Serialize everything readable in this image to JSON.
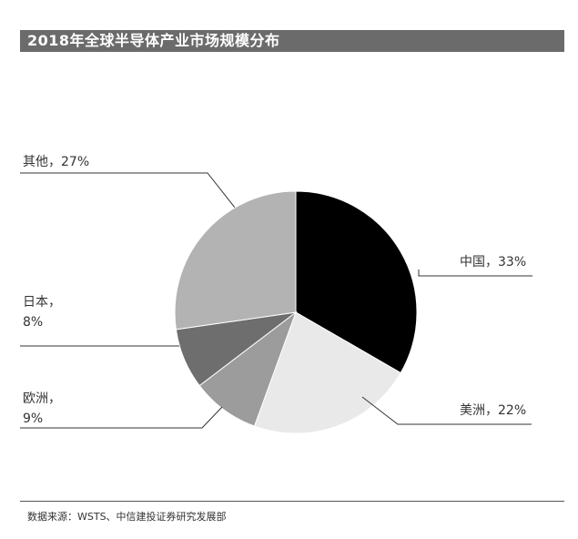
{
  "title": "2018年全球半导体产业市场规模分布",
  "source": "数据来源：WSTS、中信建投证券研究发展部",
  "chart_data": {
    "type": "pie",
    "title": "2018年全球半导体产业市场规模分布",
    "slices": [
      {
        "name": "中国",
        "value": 33,
        "color": "#000000",
        "label_lines": [
          "中国，33%"
        ]
      },
      {
        "name": "美洲",
        "value": 22,
        "color": "#e9e9e9",
        "label_lines": [
          "美洲，22%"
        ]
      },
      {
        "name": "欧洲",
        "value": 9,
        "color": "#9c9c9c",
        "label_lines": [
          "欧洲，",
          "9%"
        ]
      },
      {
        "name": "日本",
        "value": 8,
        "color": "#6e6e6e",
        "label_lines": [
          "日本，",
          "8%"
        ]
      },
      {
        "name": "其他",
        "value": 27,
        "color": "#b3b3b3",
        "label_lines": [
          "其他，27%"
        ]
      }
    ],
    "start": "12 o'clock",
    "direction": "clockwise"
  }
}
